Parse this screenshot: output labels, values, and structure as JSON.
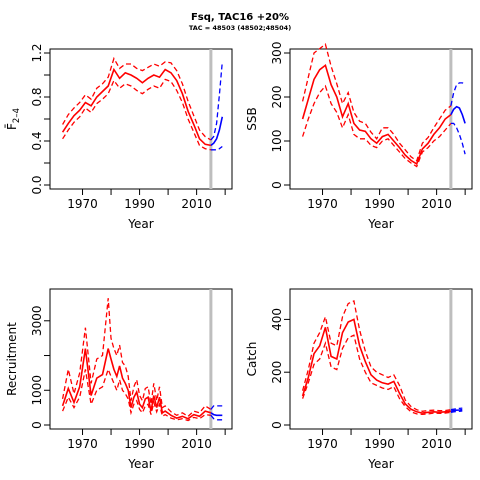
{
  "title": "Fsq, TAC16 +20%",
  "subtitle": "TAC = 48503 (48502;48504)",
  "colors": {
    "historic": "#ff0000",
    "projection": "#0000ff",
    "refline": "#bebebe"
  },
  "chart_data": [
    {
      "type": "line",
      "ylabel": "F̄",
      "ylabel_sub": "2–4",
      "xlabel": "Year",
      "xlim": [
        1960,
        2021
      ],
      "ylim": [
        0,
        1.2
      ],
      "xticks": [
        1970,
        1990,
        2010
      ],
      "yticks": [
        0.0,
        0.4,
        0.8,
        1.2
      ],
      "ytick_labels": [
        "0.0",
        "0.4",
        "0.8",
        "1.2"
      ],
      "grid": false,
      "vline_year": 2015,
      "years": [
        1963,
        1965,
        1967,
        1969,
        1971,
        1973,
        1975,
        1977,
        1979,
        1981,
        1983,
        1985,
        1987,
        1989,
        1991,
        1993,
        1995,
        1997,
        1999,
        2001,
        2003,
        2005,
        2007,
        2009,
        2011,
        2013,
        2015
      ],
      "median": [
        0.48,
        0.56,
        0.63,
        0.68,
        0.75,
        0.72,
        0.8,
        0.85,
        0.9,
        1.05,
        0.97,
        1.02,
        1.0,
        0.97,
        0.93,
        0.97,
        1.0,
        0.98,
        1.05,
        1.02,
        0.95,
        0.83,
        0.67,
        0.55,
        0.42,
        0.37,
        0.36
      ],
      "lower": [
        0.42,
        0.5,
        0.57,
        0.62,
        0.7,
        0.66,
        0.74,
        0.78,
        0.83,
        0.95,
        0.88,
        0.92,
        0.9,
        0.86,
        0.83,
        0.87,
        0.9,
        0.88,
        0.96,
        0.94,
        0.86,
        0.75,
        0.6,
        0.48,
        0.36,
        0.33,
        0.32
      ],
      "upper": [
        0.55,
        0.64,
        0.7,
        0.75,
        0.82,
        0.78,
        0.88,
        0.92,
        0.98,
        1.15,
        1.06,
        1.1,
        1.1,
        1.06,
        1.04,
        1.07,
        1.1,
        1.08,
        1.12,
        1.11,
        1.04,
        0.92,
        0.76,
        0.63,
        0.5,
        0.44,
        0.41
      ],
      "proj_years": [
        2015,
        2016,
        2017,
        2018,
        2019
      ],
      "proj_median": [
        0.36,
        0.38,
        0.42,
        0.5,
        0.62
      ],
      "proj_lower": [
        0.32,
        0.32,
        0.32,
        0.33,
        0.35
      ],
      "proj_upper": [
        0.41,
        0.44,
        0.56,
        0.82,
        1.12
      ]
    },
    {
      "type": "line",
      "ylabel": "SSB",
      "xlabel": "Year",
      "xlim": [
        1960,
        2021
      ],
      "ylim": [
        0,
        300
      ],
      "xticks": [
        1970,
        1990,
        2010
      ],
      "yticks": [
        0,
        100,
        200,
        300
      ],
      "ytick_labels": [
        "0",
        "100",
        "200",
        "300"
      ],
      "grid": false,
      "vline_year": 2015,
      "years": [
        1963,
        1965,
        1967,
        1969,
        1971,
        1973,
        1975,
        1977,
        1979,
        1981,
        1983,
        1985,
        1987,
        1989,
        1991,
        1993,
        1995,
        1997,
        1999,
        2001,
        2003,
        2005,
        2007,
        2009,
        2011,
        2013,
        2015
      ],
      "median": [
        150,
        195,
        240,
        262,
        272,
        228,
        200,
        155,
        185,
        140,
        125,
        122,
        105,
        95,
        110,
        115,
        100,
        85,
        68,
        56,
        48,
        82,
        95,
        115,
        130,
        150,
        160
      ],
      "lower": [
        110,
        150,
        185,
        210,
        225,
        185,
        165,
        130,
        160,
        115,
        105,
        105,
        90,
        85,
        100,
        105,
        90,
        75,
        60,
        50,
        42,
        75,
        85,
        100,
        110,
        125,
        140
      ],
      "upper": [
        190,
        245,
        300,
        310,
        320,
        270,
        230,
        185,
        210,
        165,
        145,
        140,
        120,
        105,
        130,
        130,
        115,
        95,
        80,
        64,
        55,
        95,
        108,
        130,
        150,
        170,
        180
      ],
      "proj_years": [
        2015,
        2016,
        2017,
        2018,
        2019,
        2020
      ],
      "proj_median": [
        160,
        172,
        178,
        175,
        160,
        140
      ],
      "proj_lower": [
        140,
        140,
        130,
        115,
        95,
        70
      ],
      "proj_upper": [
        180,
        210,
        228,
        232,
        232,
        230
      ]
    },
    {
      "type": "line",
      "ylabel": "Recruitment",
      "xlabel": "Year",
      "xlim": [
        1960,
        2021
      ],
      "ylim": [
        0,
        3800
      ],
      "xticks": [
        1970,
        1990,
        2010
      ],
      "yticks": [
        0,
        1000,
        3000
      ],
      "ytick_labels": [
        "0",
        "1000",
        "3000"
      ],
      "grid": false,
      "vline_year": 2015,
      "years": [
        1963,
        1965,
        1967,
        1969,
        1971,
        1973,
        1975,
        1977,
        1979,
        1980,
        1981,
        1982,
        1983,
        1984,
        1985,
        1986,
        1987,
        1988,
        1989,
        1990,
        1991,
        1992,
        1993,
        1994,
        1995,
        1996,
        1997,
        1998,
        1999,
        2001,
        2003,
        2005,
        2007,
        2009,
        2011,
        2013,
        2015
      ],
      "median": [
        550,
        1050,
        650,
        1100,
        2200,
        850,
        1350,
        1450,
        2200,
        1900,
        1600,
        1400,
        1700,
        1350,
        1200,
        1000,
        500,
        800,
        950,
        600,
        500,
        750,
        800,
        400,
        850,
        500,
        800,
        350,
        400,
        280,
        200,
        250,
        180,
        300,
        250,
        400,
        350
      ],
      "lower": [
        400,
        800,
        500,
        800,
        1600,
        600,
        1000,
        1100,
        1600,
        1400,
        1200,
        1000,
        1300,
        1000,
        900,
        750,
        350,
        600,
        700,
        450,
        350,
        550,
        600,
        300,
        650,
        380,
        600,
        250,
        300,
        200,
        150,
        180,
        130,
        220,
        180,
        300,
        280
      ],
      "upper": [
        750,
        1600,
        900,
        1500,
        2800,
        1200,
        1900,
        2000,
        3650,
        2500,
        2200,
        2000,
        2300,
        1800,
        1700,
        1400,
        700,
        1100,
        1300,
        850,
        700,
        1050,
        1100,
        600,
        1200,
        700,
        1100,
        500,
        550,
        380,
        280,
        350,
        250,
        400,
        350,
        550,
        450
      ],
      "proj_years": [
        2015,
        2016,
        2017,
        2018,
        2019
      ],
      "proj_median": [
        350,
        300,
        280,
        280,
        280
      ],
      "proj_lower": [
        280,
        180,
        150,
        150,
        150
      ],
      "proj_upper": [
        450,
        550,
        550,
        550,
        550
      ]
    },
    {
      "type": "line",
      "ylabel": "Catch",
      "xlabel": "Year",
      "xlim": [
        1960,
        2021
      ],
      "ylim": [
        0,
        500
      ],
      "xticks": [
        1970,
        1990,
        2010
      ],
      "yticks": [
        0,
        200,
        400
      ],
      "ytick_labels": [
        "0",
        "200",
        "400"
      ],
      "grid": false,
      "vline_year": 2015,
      "years": [
        1963,
        1965,
        1967,
        1969,
        1971,
        1973,
        1975,
        1977,
        1979,
        1981,
        1983,
        1985,
        1987,
        1989,
        1991,
        1993,
        1995,
        1997,
        1999,
        2001,
        2003,
        2005,
        2007,
        2009,
        2011,
        2013,
        2015
      ],
      "median": [
        110,
        180,
        270,
        300,
        370,
        260,
        250,
        350,
        390,
        400,
        300,
        240,
        190,
        170,
        160,
        155,
        165,
        120,
        80,
        60,
        50,
        45,
        48,
        50,
        48,
        50,
        52
      ],
      "lower": [
        100,
        160,
        230,
        250,
        310,
        220,
        210,
        290,
        330,
        340,
        250,
        200,
        160,
        150,
        140,
        135,
        145,
        100,
        70,
        50,
        42,
        40,
        42,
        45,
        44,
        45,
        48
      ],
      "upper": [
        130,
        210,
        310,
        350,
        410,
        310,
        300,
        410,
        460,
        470,
        360,
        280,
        220,
        200,
        190,
        180,
        190,
        150,
        95,
        70,
        58,
        52,
        55,
        56,
        54,
        55,
        58
      ],
      "proj_years": [
        2015,
        2016,
        2017,
        2018,
        2019
      ],
      "proj_median": [
        52,
        55,
        56,
        57,
        58
      ],
      "proj_lower": [
        48,
        50,
        51,
        52,
        53
      ],
      "proj_upper": [
        58,
        60,
        62,
        63,
        64
      ]
    }
  ]
}
